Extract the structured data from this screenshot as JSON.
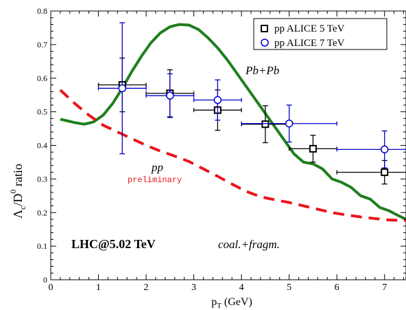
{
  "chart_data": {
    "type": "scatter",
    "xlabel_base": "p",
    "xlabel_sub": "T",
    "xlabel_unit": " (GeV)",
    "ylabel": {
      "lambda": "Λ",
      "lambda_sub": "c",
      "slash": "/D",
      "d_sup": "0",
      "ratio": "ratio"
    },
    "xlim": [
      0,
      7.45
    ],
    "ylim": [
      0,
      0.8
    ],
    "xticks": [
      0,
      1,
      2,
      3,
      4,
      5,
      6,
      7
    ],
    "yticks": [
      0,
      0.1,
      0.2,
      0.3,
      0.4,
      0.5,
      0.6,
      0.7,
      0.8
    ],
    "ytick_labels": [
      "0",
      "0.1",
      "0.2",
      "0.3",
      "0.4",
      "0.5",
      "0.6",
      "0.7",
      "0.8"
    ],
    "legend_position": "top-right",
    "series": [
      {
        "name": "pp ALICE 5 TeV",
        "marker": "square",
        "color": "#000000",
        "points": [
          {
            "x": 1.5,
            "y": 0.58,
            "xerr": 0.5,
            "yerr_lo": 0.08,
            "yerr_hi": 0.08
          },
          {
            "x": 2.5,
            "y": 0.555,
            "xerr": 0.5,
            "yerr_lo": 0.07,
            "yerr_hi": 0.07
          },
          {
            "x": 3.5,
            "y": 0.505,
            "xerr": 0.5,
            "yerr_lo": 0.06,
            "yerr_hi": 0.06
          },
          {
            "x": 4.5,
            "y": 0.463,
            "xerr": 0.5,
            "yerr_lo": 0.055,
            "yerr_hi": 0.055
          },
          {
            "x": 5.5,
            "y": 0.39,
            "xerr": 0.5,
            "yerr_lo": 0.04,
            "yerr_hi": 0.04
          },
          {
            "x": 7.0,
            "y": 0.32,
            "xerr": 1.0,
            "yerr_lo": 0.035,
            "yerr_hi": 0.035
          }
        ]
      },
      {
        "name": "pp ALICE 7 TeV",
        "marker": "circle",
        "color": "#0000cc",
        "points": [
          {
            "x": 1.5,
            "y": 0.57,
            "xerr": 0.5,
            "yerr_lo": 0.195,
            "yerr_hi": 0.195
          },
          {
            "x": 2.5,
            "y": 0.548,
            "xerr": 0.5,
            "yerr_lo": 0.065,
            "yerr_hi": 0.065
          },
          {
            "x": 3.5,
            "y": 0.535,
            "xerr": 0.5,
            "yerr_lo": 0.06,
            "yerr_hi": 0.06
          },
          {
            "x": 5.0,
            "y": 0.465,
            "xerr": 1.0,
            "yerr_lo": 0.055,
            "yerr_hi": 0.055
          },
          {
            "x": 7.0,
            "y": 0.388,
            "xerr": 1.0,
            "yerr_lo": 0.055,
            "yerr_hi": 0.055
          }
        ]
      }
    ],
    "curves": [
      {
        "label": "Pb+Pb",
        "color": "#1e7f1e",
        "style": "solid",
        "points": [
          [
            0.2,
            0.478
          ],
          [
            0.5,
            0.468
          ],
          [
            0.7,
            0.463
          ],
          [
            0.9,
            0.47
          ],
          [
            1.1,
            0.49
          ],
          [
            1.3,
            0.525
          ],
          [
            1.5,
            0.57
          ],
          [
            1.7,
            0.62
          ],
          [
            1.9,
            0.665
          ],
          [
            2.1,
            0.705
          ],
          [
            2.3,
            0.735
          ],
          [
            2.5,
            0.753
          ],
          [
            2.7,
            0.76
          ],
          [
            2.9,
            0.758
          ],
          [
            3.1,
            0.745
          ],
          [
            3.3,
            0.72
          ],
          [
            3.5,
            0.69
          ],
          [
            3.7,
            0.655
          ],
          [
            3.9,
            0.615
          ],
          [
            4.1,
            0.575
          ],
          [
            4.3,
            0.535
          ],
          [
            4.5,
            0.495
          ],
          [
            4.7,
            0.455
          ],
          [
            4.9,
            0.415
          ],
          [
            5.1,
            0.375
          ],
          [
            5.3,
            0.35
          ],
          [
            5.5,
            0.345
          ],
          [
            5.7,
            0.33
          ],
          [
            5.9,
            0.3
          ],
          [
            6.1,
            0.29
          ],
          [
            6.3,
            0.275
          ],
          [
            6.5,
            0.25
          ],
          [
            6.7,
            0.24
          ],
          [
            6.9,
            0.215
          ],
          [
            7.1,
            0.205
          ],
          [
            7.3,
            0.19
          ],
          [
            7.45,
            0.18
          ]
        ]
      },
      {
        "label": "pp",
        "sublabel": "preliminary",
        "color": "#e8161b",
        "style": "dashed",
        "points": [
          [
            0.2,
            0.565
          ],
          [
            0.5,
            0.525
          ],
          [
            0.8,
            0.49
          ],
          [
            1.1,
            0.46
          ],
          [
            1.4,
            0.44
          ],
          [
            1.7,
            0.42
          ],
          [
            2.0,
            0.4
          ],
          [
            2.3,
            0.383
          ],
          [
            2.6,
            0.368
          ],
          [
            2.9,
            0.352
          ],
          [
            3.2,
            0.33
          ],
          [
            3.5,
            0.308
          ],
          [
            3.8,
            0.285
          ],
          [
            4.1,
            0.263
          ],
          [
            4.4,
            0.247
          ],
          [
            4.7,
            0.238
          ],
          [
            5.0,
            0.23
          ],
          [
            5.3,
            0.22
          ],
          [
            5.6,
            0.21
          ],
          [
            5.9,
            0.2
          ],
          [
            6.2,
            0.193
          ],
          [
            6.5,
            0.187
          ],
          [
            6.8,
            0.182
          ],
          [
            7.1,
            0.178
          ],
          [
            7.45,
            0.176
          ]
        ]
      }
    ],
    "annotations": {
      "lhc": "LHC@5.02 TeV",
      "coal": "coal.+fragm."
    }
  }
}
